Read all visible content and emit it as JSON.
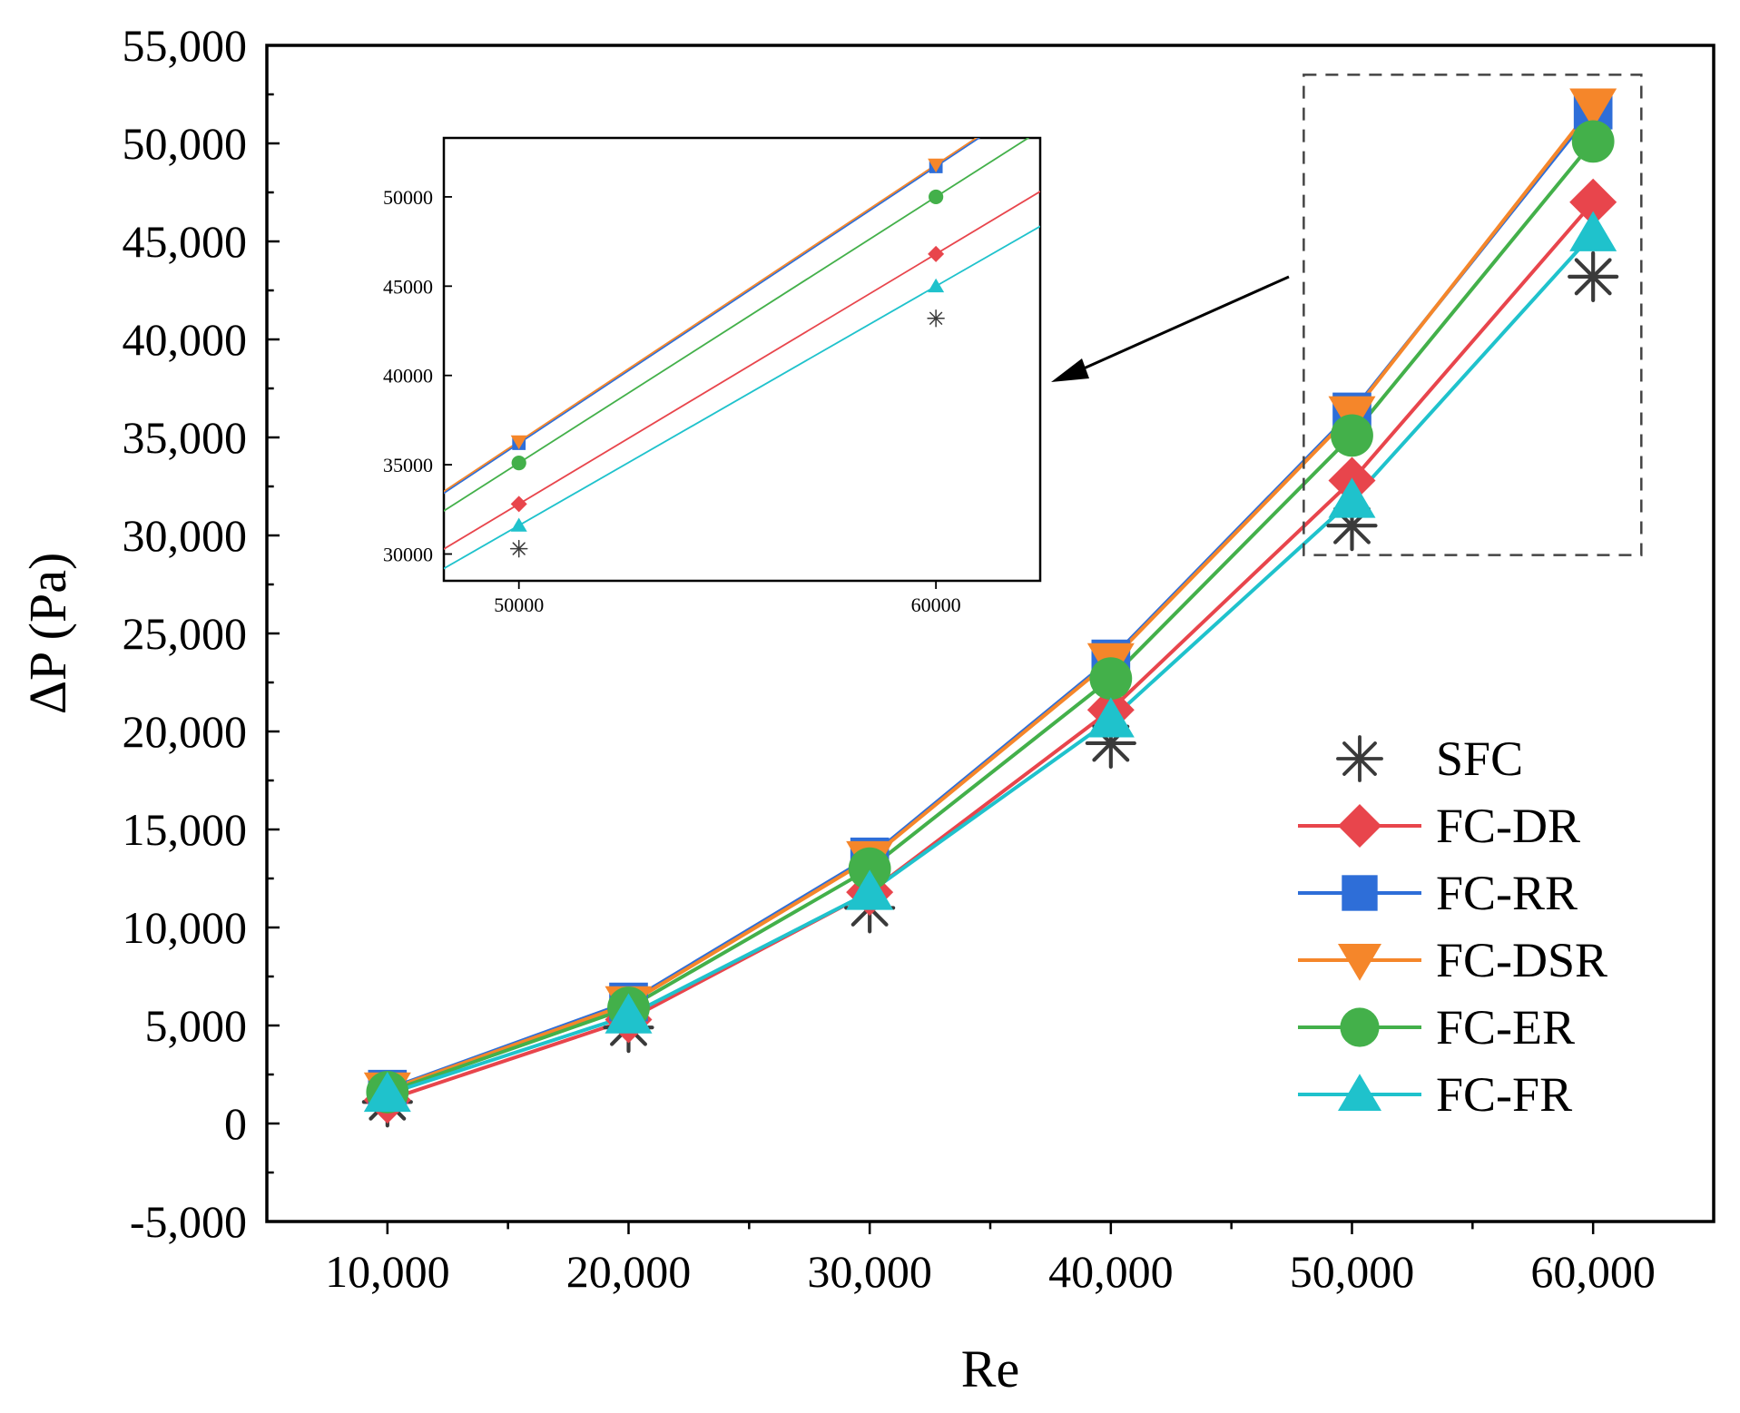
{
  "chart_data": [
    {
      "type": "line",
      "role": "main",
      "title": "",
      "xlabel": "Re",
      "ylabel": "ΔP (Pa)",
      "x": [
        10000,
        20000,
        30000,
        40000,
        50000,
        60000
      ],
      "xlim": [
        5000,
        65000
      ],
      "ylim": [
        -5000,
        55000
      ],
      "xticks": [
        10000,
        20000,
        30000,
        40000,
        50000,
        60000
      ],
      "xtick_labels": [
        "10,000",
        "20,000",
        "30,000",
        "40,000",
        "50,000",
        "60,000"
      ],
      "yticks": [
        -5000,
        0,
        5000,
        10000,
        15000,
        20000,
        25000,
        30000,
        35000,
        40000,
        45000,
        50000,
        55000
      ],
      "ytick_labels": [
        "-5,000",
        "0",
        "5,000",
        "10,000",
        "15,000",
        "20,000",
        "25,000",
        "30,000",
        "35,000",
        "40,000",
        "45,000",
        "50,000",
        "55,000"
      ],
      "legend_position": "bottom-right",
      "series": [
        {
          "name": "SFC",
          "marker": "asterisk",
          "color": "#3a3a3a",
          "line": false,
          "values": [
            1100,
            4900,
            11000,
            19400,
            30500,
            43200
          ]
        },
        {
          "name": "FC-DR",
          "marker": "diamond",
          "color": "#e8454c",
          "line": true,
          "values": [
            1200,
            5300,
            11800,
            21100,
            32800,
            47000
          ]
        },
        {
          "name": "FC-RR",
          "marker": "square",
          "color": "#2e6ed8",
          "line": true,
          "values": [
            1750,
            6200,
            13600,
            23700,
            36300,
            51700
          ]
        },
        {
          "name": "FC-DSR",
          "marker": "triangle-down",
          "color": "#f5862a",
          "line": true,
          "values": [
            1700,
            6100,
            13500,
            23600,
            36200,
            51900
          ]
        },
        {
          "name": "FC-ER",
          "marker": "circle",
          "color": "#43b04a",
          "line": true,
          "values": [
            1600,
            5900,
            13000,
            22700,
            35100,
            50100
          ]
        },
        {
          "name": "FC-FR",
          "marker": "triangle-up",
          "color": "#1fc2cc",
          "line": true,
          "values": [
            1500,
            5500,
            11800,
            20600,
            31800,
            45400
          ]
        }
      ]
    },
    {
      "type": "line",
      "role": "inset",
      "zoom_of_main_range": {
        "x": [
          48000,
          62000
        ],
        "y": [
          29000,
          53500
        ]
      },
      "x": [
        50000,
        60000
      ],
      "xlim": [
        48200,
        62500
      ],
      "ylim": [
        28500,
        53300
      ],
      "xticks": [
        50000,
        60000
      ],
      "xtick_labels": [
        "50000",
        "60000"
      ],
      "yticks": [
        30000,
        35000,
        40000,
        45000,
        50000
      ],
      "ytick_labels": [
        "30000",
        "35000",
        "40000",
        "45000",
        "50000"
      ],
      "series": [
        {
          "name": "SFC",
          "marker": "asterisk",
          "color": "#3a3a3a",
          "line": false,
          "values": [
            30300,
            43200
          ]
        },
        {
          "name": "FC-DR",
          "marker": "diamond",
          "color": "#e8454c",
          "line": true,
          "values": [
            32800,
            46800
          ]
        },
        {
          "name": "FC-RR",
          "marker": "square",
          "color": "#2e6ed8",
          "line": true,
          "values": [
            36200,
            51700
          ]
        },
        {
          "name": "FC-DSR",
          "marker": "triangle-down",
          "color": "#f5862a",
          "line": true,
          "values": [
            36300,
            51800
          ]
        },
        {
          "name": "FC-ER",
          "marker": "circle",
          "color": "#43b04a",
          "line": true,
          "values": [
            35100,
            50000
          ]
        },
        {
          "name": "FC-FR",
          "marker": "triangle-up",
          "color": "#1fc2cc",
          "line": true,
          "values": [
            31600,
            45000
          ]
        }
      ]
    }
  ]
}
